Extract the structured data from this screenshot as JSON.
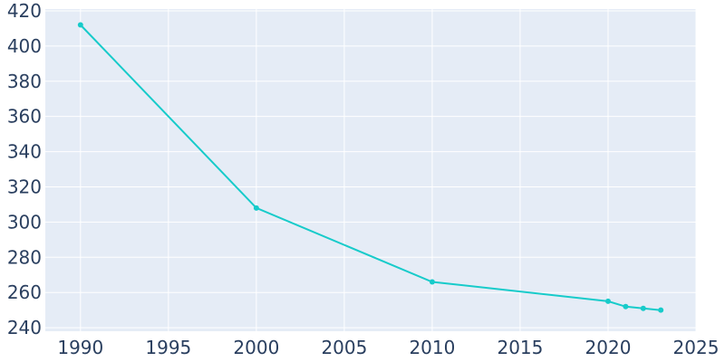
{
  "chart_data": {
    "type": "line",
    "title": "",
    "xlabel": "",
    "ylabel": "",
    "xlim": [
      1988,
      2025
    ],
    "ylim": [
      238,
      421
    ],
    "x_ticks": [
      1990,
      1995,
      2000,
      2005,
      2010,
      2015,
      2020,
      2025
    ],
    "y_ticks": [
      240,
      260,
      280,
      300,
      320,
      340,
      360,
      380,
      400,
      420
    ],
    "grid": true,
    "legend": "none",
    "colors": {
      "line": "#17cbca",
      "plot_bg": "#e5ecf6",
      "tick_text": "#2a3f5f",
      "grid": "#ffffff"
    },
    "series": [
      {
        "x": [
          1990,
          2000,
          2010,
          2020,
          2021,
          2022,
          2023
        ],
        "y": [
          412,
          308,
          266,
          255,
          252,
          251,
          250
        ]
      }
    ]
  }
}
